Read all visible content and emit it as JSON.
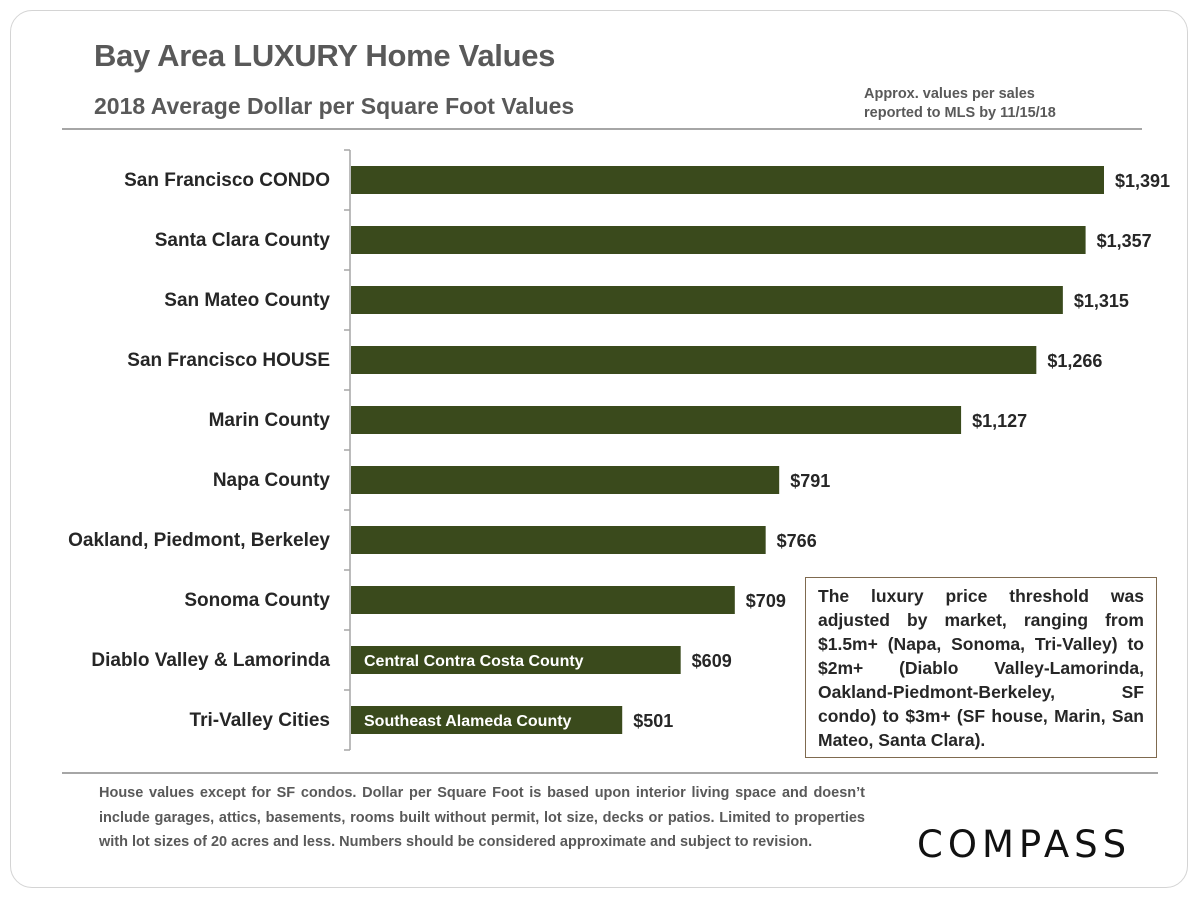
{
  "header": {
    "title": "Bay Area LUXURY Home Values",
    "subtitle": "2018 Average Dollar per Square Foot Values",
    "note_line1": "Approx. values per sales",
    "note_line2": "reported to MLS by 11/15/18"
  },
  "chart_data": {
    "type": "bar",
    "orientation": "horizontal",
    "title": "Bay Area LUXURY Home Values",
    "subtitle": "2018 Average Dollar per Square Foot Values",
    "categories": [
      "San Francisco CONDO",
      "Santa Clara County",
      "San Mateo County",
      "San Francisco HOUSE",
      "Marin County",
      "Napa County",
      "Oakland, Piedmont, Berkeley",
      "Sonoma County",
      "Diablo Valley & Lamorinda",
      "Tri-Valley Cities"
    ],
    "values": [
      1391,
      1357,
      1315,
      1266,
      1127,
      791,
      766,
      709,
      609,
      501
    ],
    "data_labels": [
      "$1,391",
      "$1,357",
      "$1,315",
      "$1,266",
      "$1,127",
      "$791",
      "$766",
      "$709",
      "$609",
      "$501"
    ],
    "bar_inner_labels": [
      "",
      "",
      "",
      "",
      "",
      "",
      "",
      "",
      "Central Contra Costa County",
      "Southeast Alameda  County"
    ],
    "xlim": [
      0,
      1391
    ],
    "grid": false,
    "bar_color": "#3a4a1c"
  },
  "callout": "The luxury price threshold was adjusted by market, ranging from $1.5m+ (Napa, Sonoma, Tri-Valley) to $2m+ (Diablo Valley-Lamorinda, Oakland-Piedmont-Berkeley, SF condo) to $3m+ (SF house, Marin, San Mateo, Santa Clara).",
  "footer": "House values except for SF condos. Dollar per Square Foot is based upon interior living space and doesn’t include garages, attics, basements, rooms built without permit, lot size, decks or patios. Limited to properties with lot sizes of 20 acres and less. Numbers should be considered approximate and subject to revision.",
  "logo": "COMPASS"
}
